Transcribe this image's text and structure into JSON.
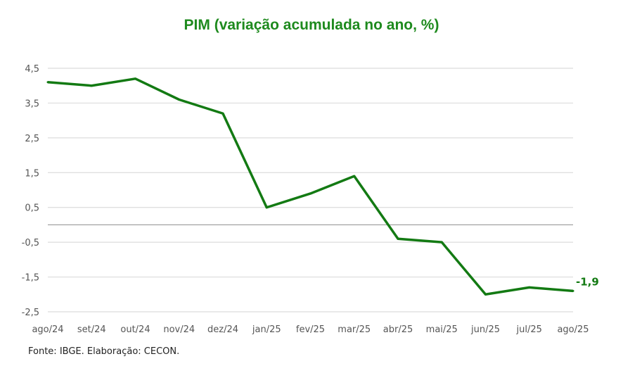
{
  "chart_data": {
    "type": "line",
    "title": "PIM (variação acumulada no ano, %)",
    "xlabel": "",
    "ylabel": "",
    "categories": [
      "ago/24",
      "set/24",
      "out/24",
      "nov/24",
      "dez/24",
      "jan/25",
      "fev/25",
      "mar/25",
      "abr/25",
      "mai/25",
      "jun/25",
      "jul/25",
      "ago/25"
    ],
    "series": [
      {
        "name": "PIM",
        "values": [
          4.1,
          4.0,
          4.2,
          3.6,
          3.2,
          0.5,
          0.9,
          1.4,
          -0.4,
          -0.5,
          -2.0,
          -1.8,
          -1.9
        ],
        "color": "#137a13"
      }
    ],
    "yticks": [
      4.5,
      3.5,
      2.5,
      1.5,
      0.5,
      -0.5,
      -1.5,
      -2.5
    ],
    "ytick_labels": [
      "4,5",
      "3,5",
      "2,5",
      "1,5",
      "0,5",
      "-0,5",
      "-1,5",
      "-2,5"
    ],
    "ylim": [
      -2.5,
      4.5
    ],
    "grid": true,
    "annotations": [
      {
        "label": "-1,9",
        "category": "ago/25"
      }
    ]
  },
  "source": "Fonte: IBGE. Elaboração: CECON."
}
